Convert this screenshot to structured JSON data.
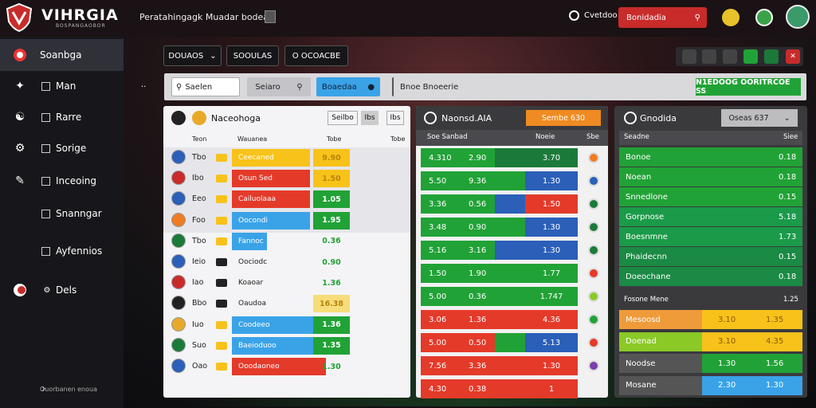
{
  "app": {
    "brand": "VIHRGIA",
    "brand_sub": "BOSPANGAOBOR",
    "breadcrumb": "Peratahingagk Muadar bodea"
  },
  "topbar": {
    "help_label": "Cvetdoo",
    "search_label": "Bonidadia"
  },
  "sidebar": {
    "items": [
      {
        "label": "Soanbga",
        "icon": "ball-icon"
      },
      {
        "label": "Man",
        "icon": "star-icon"
      },
      {
        "label": "Rarre",
        "icon": "people-icon"
      },
      {
        "label": "Sorige",
        "icon": "chart-icon"
      },
      {
        "label": "Inceoing",
        "icon": "edit-icon"
      },
      {
        "label": "Snanngar",
        "icon": ""
      },
      {
        "label": "Ayfennios",
        "icon": ""
      },
      {
        "label": "Dels",
        "icon": "dot-icon"
      }
    ],
    "footer": "Ouorbanen enoua"
  },
  "filters": {
    "dd1": "DOUAOS",
    "dd2": "SOOULAS",
    "dd3": "O OCOACBE"
  },
  "toolbar": {
    "search_value": "Saelen",
    "btn1": "Seiaro",
    "btn2": "Boaedaa",
    "label": "Bnoe Bnoeerie",
    "green_btn": "N1EDOOG OORITRCOE SS"
  },
  "panel1": {
    "title": "Naceohoga",
    "hbtn1": "Seilbo",
    "hbtn2": "Ibs",
    "hbtn3": "Ibs",
    "col1": "Teon",
    "col2": "Wauanea",
    "col3": "Tobe",
    "rows": [
      {
        "abbr": "Tbo",
        "name": "Ceecaned",
        "val": "9.90"
      },
      {
        "abbr": "Ibo",
        "name": "Osun Sed",
        "val": "1.50"
      },
      {
        "abbr": "Eeo",
        "name": "Cailuolaaa",
        "val": "1.05"
      },
      {
        "abbr": "Foo",
        "name": "Oocondi",
        "val": "1.95"
      },
      {
        "abbr": "Tbo",
        "name": "Fannoc",
        "val": "0.36"
      },
      {
        "abbr": "Ieio",
        "name": "Oociodc",
        "val": "0.90"
      },
      {
        "abbr": "Iao",
        "name": "Koaoar",
        "val": "1.36"
      },
      {
        "abbr": "Bbo",
        "name": "Oaudoa",
        "val": "16.38"
      },
      {
        "abbr": "Iuo",
        "name": "Coodeeo",
        "val": "1.36"
      },
      {
        "abbr": "Suo",
        "name": "Baeioduoo",
        "val": "1.35"
      },
      {
        "abbr": "Oao",
        "name": "Ooodaoneo",
        "val": "1.30"
      }
    ]
  },
  "panel2": {
    "title": "Naonsd.AIA",
    "badge": "Sembe 630",
    "col1": "Soe Sanbad",
    "col2": "Noeie",
    "col3": "Sbe",
    "rows": [
      {
        "a": "4.310",
        "b": "2.90",
        "c": "3.70"
      },
      {
        "a": "5.50",
        "b": "9.36",
        "c": "1.30"
      },
      {
        "a": "3.36",
        "b": "0.56",
        "c": "1.50"
      },
      {
        "a": "3.48",
        "b": "0.90",
        "c": "1.30"
      },
      {
        "a": "5.16",
        "b": "3.16",
        "c": "1.30"
      },
      {
        "a": "1.50",
        "b": "1.90",
        "c": "1.77"
      },
      {
        "a": "5.00",
        "b": "0.36",
        "c": "1.747"
      },
      {
        "a": "3.06",
        "b": "1.36",
        "c": "4.36"
      },
      {
        "a": "5.00",
        "b": "0.50",
        "c": "5.13"
      },
      {
        "a": "7.56",
        "b": "3.36",
        "c": "1.30"
      },
      {
        "a": "4.30",
        "b": "0.38",
        "c": "1"
      }
    ]
  },
  "panel3": {
    "title": "Gnodida",
    "btn": "Oseas 637",
    "col1": "Seadne",
    "col2": "Siee",
    "rows": [
      {
        "name": "Bonoe",
        "val": "0.18"
      },
      {
        "name": "Noean",
        "val": "0.18"
      },
      {
        "name": "Snnedlone",
        "val": "0.15"
      },
      {
        "name": "Gorpnose",
        "val": "5.18"
      },
      {
        "name": "Boesnmne",
        "val": "1.73"
      },
      {
        "name": "Phaidecnn",
        "val": "0.15"
      },
      {
        "name": "Doeochane",
        "val": "0.18"
      }
    ],
    "section": "Fosone Mene",
    "section_val": "1.25",
    "rows2": [
      {
        "name": "Mesoosd",
        "mid": "3.10",
        "val": "1.35"
      },
      {
        "name": "Doenad",
        "mid": "3.10",
        "val": "4.35"
      },
      {
        "name": "Noodse",
        "mid": "1.30",
        "val": "1.56"
      },
      {
        "name": "Mosane",
        "mid": "2.30",
        "val": "1.30"
      }
    ]
  },
  "colors": {
    "accent": "#c92b2b",
    "green": "#21a236",
    "blue": "#3aa3e8",
    "red": "#e43a2a",
    "yellow": "#f7c21a",
    "orange": "#ef7b22"
  }
}
